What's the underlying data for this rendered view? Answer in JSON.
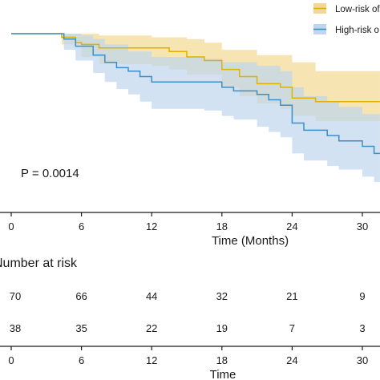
{
  "chart_data": {
    "type": "line",
    "subtype": "kaplan-meier",
    "xlabel": "Time (Months)",
    "x_ticks": [
      0,
      6,
      12,
      18,
      24,
      30
    ],
    "x_range": [
      0,
      31.5
    ],
    "y_range": [
      0,
      1.0
    ],
    "grid": false,
    "legend_position": "top-right",
    "p_value_label": "P = 0.0014",
    "series": [
      {
        "name": "Low-risk of",
        "color": "#E0B200",
        "band_color": "#F2D891",
        "steps": [
          [
            0,
            1.0
          ],
          [
            4,
            1.0
          ],
          [
            4.3,
            0.98
          ],
          [
            5.5,
            0.95
          ],
          [
            6,
            0.94
          ],
          [
            7.5,
            0.92
          ],
          [
            12,
            0.92
          ],
          [
            13.5,
            0.9
          ],
          [
            15,
            0.87
          ],
          [
            16.5,
            0.85
          ],
          [
            18,
            0.8
          ],
          [
            19.5,
            0.76
          ],
          [
            21,
            0.72
          ],
          [
            23,
            0.7
          ],
          [
            24,
            0.64
          ],
          [
            26,
            0.62
          ],
          [
            31.5,
            0.62
          ]
        ],
        "upper": [
          [
            0,
            1.0
          ],
          [
            4.3,
            1.0
          ],
          [
            6,
            1.0
          ],
          [
            7.5,
            0.99
          ],
          [
            12,
            0.98
          ],
          [
            15,
            0.97
          ],
          [
            16.5,
            0.95
          ],
          [
            18,
            0.91
          ],
          [
            21,
            0.88
          ],
          [
            24,
            0.84
          ],
          [
            26,
            0.79
          ],
          [
            31.5,
            0.79
          ]
        ],
        "lower": [
          [
            0,
            1.0
          ],
          [
            4.3,
            0.94
          ],
          [
            6,
            0.87
          ],
          [
            7.5,
            0.83
          ],
          [
            12,
            0.82
          ],
          [
            13.5,
            0.8
          ],
          [
            15,
            0.77
          ],
          [
            18,
            0.7
          ],
          [
            19.5,
            0.65
          ],
          [
            21,
            0.61
          ],
          [
            23,
            0.58
          ],
          [
            24,
            0.54
          ],
          [
            26,
            0.51
          ],
          [
            31.5,
            0.51
          ]
        ]
      },
      {
        "name": "High-risk o",
        "color": "#3B8FC9",
        "band_color": "#BFD6EE",
        "steps": [
          [
            0,
            1.0
          ],
          [
            4,
            1.0
          ],
          [
            4.5,
            0.97
          ],
          [
            5.5,
            0.93
          ],
          [
            7,
            0.88
          ],
          [
            8,
            0.84
          ],
          [
            9,
            0.81
          ],
          [
            10,
            0.79
          ],
          [
            11,
            0.76
          ],
          [
            12,
            0.73
          ],
          [
            16.5,
            0.73
          ],
          [
            18,
            0.7
          ],
          [
            19,
            0.68
          ],
          [
            21,
            0.66
          ],
          [
            22,
            0.63
          ],
          [
            23,
            0.6
          ],
          [
            24,
            0.5
          ],
          [
            25,
            0.46
          ],
          [
            27,
            0.43
          ],
          [
            28,
            0.4
          ],
          [
            30,
            0.37
          ],
          [
            31,
            0.33
          ],
          [
            31.5,
            0.33
          ]
        ],
        "upper": [
          [
            0,
            1.0
          ],
          [
            4.5,
            1.0
          ],
          [
            6,
            0.99
          ],
          [
            7,
            0.97
          ],
          [
            8,
            0.94
          ],
          [
            10,
            0.9
          ],
          [
            12,
            0.87
          ],
          [
            16.5,
            0.86
          ],
          [
            18,
            0.84
          ],
          [
            21,
            0.82
          ],
          [
            23,
            0.79
          ],
          [
            24,
            0.7
          ],
          [
            25,
            0.65
          ],
          [
            27,
            0.62
          ],
          [
            28,
            0.59
          ],
          [
            30,
            0.55
          ],
          [
            31.5,
            0.54
          ]
        ],
        "lower": [
          [
            0,
            1.0
          ],
          [
            4.5,
            0.91
          ],
          [
            5.5,
            0.85
          ],
          [
            7,
            0.78
          ],
          [
            8,
            0.73
          ],
          [
            9,
            0.69
          ],
          [
            10,
            0.66
          ],
          [
            11,
            0.62
          ],
          [
            12,
            0.58
          ],
          [
            16.5,
            0.57
          ],
          [
            18,
            0.54
          ],
          [
            19,
            0.52
          ],
          [
            21,
            0.48
          ],
          [
            22,
            0.45
          ],
          [
            23,
            0.42
          ],
          [
            24,
            0.33
          ],
          [
            25,
            0.29
          ],
          [
            27,
            0.26
          ],
          [
            28,
            0.24
          ],
          [
            30,
            0.2
          ],
          [
            31,
            0.17
          ],
          [
            31.5,
            0.17
          ]
        ]
      }
    ]
  },
  "risk_table": {
    "title": "Number at risk",
    "xlabel": "Time",
    "x_ticks": [
      0,
      6,
      12,
      18,
      24,
      30
    ],
    "rows": [
      {
        "group": "Low-risk of",
        "counts": [
          70,
          66,
          44,
          32,
          21,
          9
        ]
      },
      {
        "group": "High-risk o",
        "counts": [
          38,
          35,
          22,
          19,
          7,
          3
        ]
      }
    ]
  }
}
